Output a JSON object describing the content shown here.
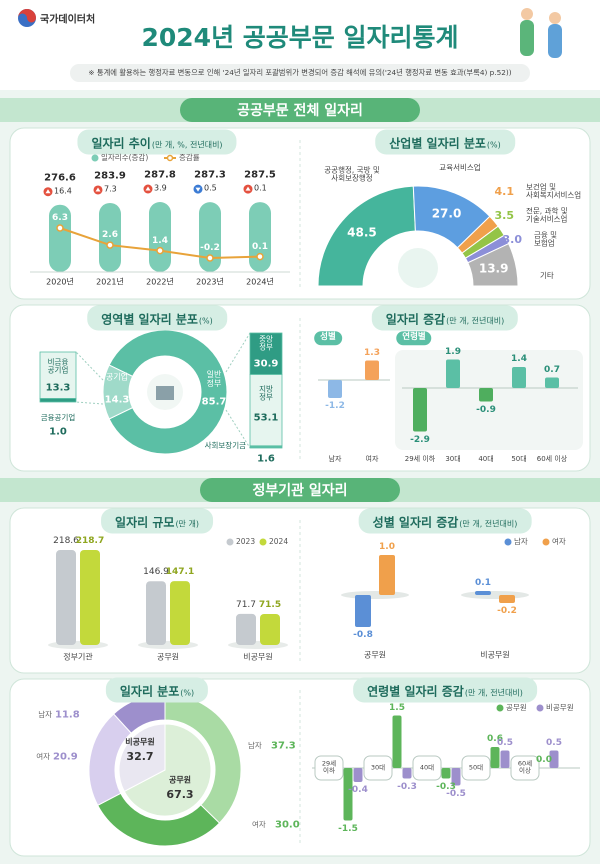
{
  "header": {
    "logo": "국가데이터처",
    "title": "2024년 공공부문 일자리통계",
    "note": "※ 통계에 활용하는 행정자료 변동으로 인해 '24년 일자리 포괄범위가 변경되어 증감 해석에 유의('24년 행정자료 변동 효과(부록4) p.52))"
  },
  "sections": [
    "공공부문 전체 일자리",
    "정부기관 일자리"
  ],
  "chart_data": [
    {
      "type": "combo",
      "title": "일자리 추이",
      "unit": "(만 개, %, 전년대비)",
      "categories": [
        "2020년",
        "2021년",
        "2022년",
        "2023년",
        "2024년"
      ],
      "series": [
        {
          "name": "일자리수(증감)",
          "color": "#7dcdb6",
          "values": [
            276.6,
            283.9,
            287.8,
            287.3,
            287.5
          ],
          "changes": [
            16.4,
            7.3,
            3.9,
            -0.5,
            0.1
          ],
          "change_labels": [
            "16.4",
            "7.3",
            "3.9",
            "0.5",
            "0.1"
          ],
          "change_colors": [
            "#e4513f",
            "#3b7bd4"
          ]
        },
        {
          "name": "증감률",
          "color": "#e8a33a",
          "values": [
            6.3,
            2.6,
            1.4,
            -0.2,
            0.1
          ]
        }
      ]
    },
    {
      "type": "semidonut",
      "title": "산업별 일자리 분포",
      "unit": "(%)",
      "categories": [
        "공공행정, 국방 및\n사회보장행정",
        "교육서비스업",
        "보건업 및\n사회복지서비스업",
        "전문, 과학 및\n기술서비스업",
        "금융 및\n보험업",
        "기타"
      ],
      "values": [
        48.5,
        27.0,
        4.1,
        3.5,
        3.0,
        13.9
      ],
      "value_labels": [
        "48.5",
        "27.0",
        "4.1",
        "3.5",
        "3.0",
        "13.9"
      ],
      "colors": [
        "#45b59c",
        "#5d9ee0",
        "#f0a04b",
        "#94c447",
        "#8c8fd8",
        "#b3b3b3"
      ]
    },
    {
      "type": "donut",
      "title": "영역별 일자리 분포",
      "unit": "(%)",
      "categories": [
        "일반\n정부",
        "공기업"
      ],
      "values": [
        85.7,
        14.3
      ],
      "colors": [
        "#5bbfa5",
        "#9fdac9"
      ],
      "breakdowns": [
        {
          "categories": [
            "비금융\n공기업",
            "금융공기업"
          ],
          "values": [
            13.3,
            1.0
          ],
          "value_labels": [
            "13.3",
            "1.0"
          ],
          "colors": [
            "#e6f5ef",
            "#2f9c84"
          ]
        },
        {
          "categories": [
            "중앙\n정부",
            "지방\n정부",
            "사회보장기금"
          ],
          "values": [
            30.9,
            53.1,
            1.6
          ],
          "colors": [
            "#2f9c84",
            "#e6f5ef",
            "#5bbfa5"
          ]
        }
      ]
    },
    {
      "type": "diverging",
      "title": "일자리 증감",
      "unit": "(만 개, 전년대비)",
      "groups": [
        {
          "name": "성별",
          "categories": [
            "남자",
            "여자"
          ],
          "values": [
            -1.2,
            1.3
          ],
          "colors": [
            "#8db8e6",
            "#f4a25a"
          ]
        },
        {
          "name": "연령별",
          "categories": [
            "29세 이하",
            "30대",
            "40대",
            "50대",
            "60세 이상"
          ],
          "values": [
            -2.9,
            1.9,
            -0.9,
            1.4,
            0.7
          ],
          "colors": [
            "#4fae5e",
            "#5bbfa5",
            "#4fae5e",
            "#5bbfa5",
            "#5bbfa5"
          ]
        }
      ]
    },
    {
      "type": "bar",
      "title": "일자리 규모",
      "unit": "(만 개)",
      "categories": [
        "정부기관",
        "공무원",
        "비공무원"
      ],
      "series": [
        {
          "name": "2023",
          "color": "#c5cacf",
          "values": [
            218.6,
            146.9,
            71.7
          ]
        },
        {
          "name": "2024",
          "color": "#c3d93b",
          "values": [
            218.7,
            147.1,
            71.5
          ]
        }
      ]
    },
    {
      "type": "diverging",
      "title": "성별 일자리 증감",
      "unit": "(만 개, 전년대비)",
      "categories": [
        "공무원",
        "비공무원"
      ],
      "series": [
        {
          "name": "남자",
          "color": "#5b8fd6",
          "values": [
            -0.8,
            0.1
          ]
        },
        {
          "name": "여자",
          "color": "#f0a04b",
          "values": [
            1.0,
            -0.2
          ],
          "value_labels": [
            "1.0",
            "-0.2"
          ]
        }
      ]
    },
    {
      "type": "sunburst",
      "title": "일자리 분포",
      "unit": "(%)",
      "inner": {
        "categories": [
          "공무원",
          "비공무원"
        ],
        "values": [
          67.3,
          32.7
        ],
        "colors": [
          "#dcefd8",
          "#e9e7f1"
        ]
      },
      "outer": {
        "categories": [
          "남자",
          "여자",
          "여자",
          "남자"
        ],
        "values": [
          37.3,
          30.0,
          20.9,
          11.8
        ],
        "value_labels": [
          "37.3",
          "30.0",
          "20.9",
          "11.8"
        ],
        "colors": [
          "#a9dba4",
          "#5db55a",
          "#d8cfee",
          "#9d8fcc"
        ]
      }
    },
    {
      "type": "diverging",
      "title": "연령별 일자리 증감",
      "unit": "(만 개, 전년대비)",
      "categories": [
        "29세\n이하",
        "30대",
        "40대",
        "50대",
        "60세\n이상"
      ],
      "series": [
        {
          "name": "공무원",
          "color": "#5db55a",
          "values": [
            -1.5,
            1.5,
            -0.3,
            0.6,
            0.0
          ],
          "value_labels": [
            "-1.5",
            "1.5",
            "-0.3",
            "0.6",
            "0.0"
          ]
        },
        {
          "name": "비공무원",
          "color": "#9d8fcc",
          "values": [
            -0.4,
            -0.3,
            -0.5,
            0.5,
            0.5
          ]
        }
      ]
    }
  ]
}
